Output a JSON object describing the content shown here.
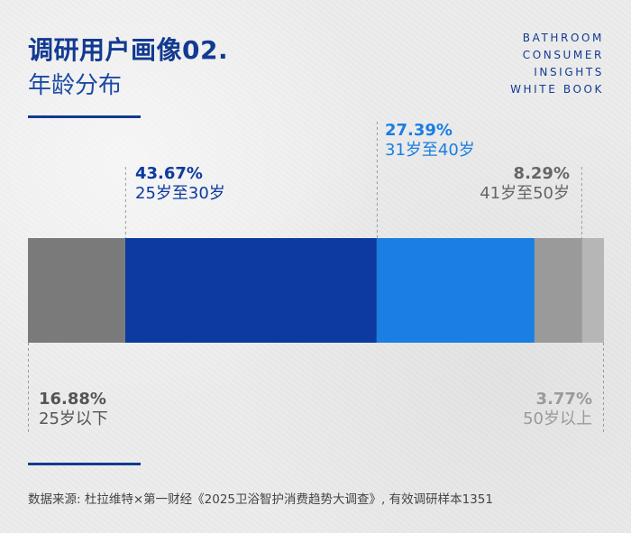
{
  "header": {
    "title": "调研用户画像02.",
    "subtitle": "年龄分布",
    "brand_lines": [
      "BATHROOM",
      "CONSUMER",
      "INSIGHTS",
      "WHITE BOOK"
    ]
  },
  "chart_data": {
    "type": "bar",
    "orientation": "horizontal-stacked",
    "unit": "%",
    "segments": [
      {
        "category": "25岁以下",
        "value": 16.88,
        "label": "16.88%",
        "color": "#7a7a7a"
      },
      {
        "category": "25岁至30岁",
        "value": 43.67,
        "label": "43.67%",
        "color": "#0d3a9e"
      },
      {
        "category": "31岁至40岁",
        "value": 27.39,
        "label": "27.39%",
        "color": "#1a7ee3"
      },
      {
        "category": "41岁至50岁",
        "value": 8.29,
        "label": "8.29%",
        "color": "#9a9a9a"
      },
      {
        "category": "50岁以上",
        "value": 3.77,
        "label": "3.77%",
        "color": "#b6b6b6"
      }
    ],
    "label_colors": {
      "grey_dark": "#555555",
      "blue_dark": "#0d3a9e",
      "blue_light": "#1a7ee3",
      "grey_light": "#9a9a9a"
    }
  },
  "footer": {
    "source": "数据来源: 杜拉维特×第一财经《2025卫浴智护消费趋势大调查》, 有效调研样本1351"
  }
}
